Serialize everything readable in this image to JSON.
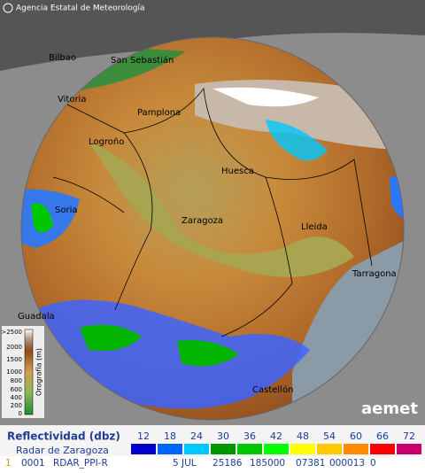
{
  "header": {
    "agency": "Agencia Estatal de Meteorología"
  },
  "map": {
    "cities": [
      {
        "label": "Bilbao"
      },
      {
        "label": "San Sebastián"
      },
      {
        "label": "Vitoria"
      },
      {
        "label": "Pamplona"
      },
      {
        "label": "Logroño"
      },
      {
        "label": "Huesca"
      },
      {
        "label": "Zaragoza"
      },
      {
        "label": "Lleida"
      },
      {
        "label": "Tarragona"
      },
      {
        "label": "Soria"
      },
      {
        "label": "Guadala"
      },
      {
        "label": "Castellón"
      }
    ]
  },
  "elevation_legend": {
    "title": "Orografía (m)",
    "ticks": [
      ">2500",
      "2000",
      "1500",
      "1000",
      "800",
      "600",
      "400",
      "200",
      "0"
    ]
  },
  "reflectivity_legend": {
    "title": "Reflectividad (dbz)",
    "radar": "Radar de Zaragoza",
    "levels": [
      {
        "label": "12",
        "color": "#0000c8"
      },
      {
        "label": "18",
        "color": "#0064ff"
      },
      {
        "label": "24",
        "color": "#00c8ff"
      },
      {
        "label": "30",
        "color": "#009600"
      },
      {
        "label": "36",
        "color": "#00c800"
      },
      {
        "label": "42",
        "color": "#00ff00"
      },
      {
        "label": "48",
        "color": "#ffff00"
      },
      {
        "label": "54",
        "color": "#ffc800"
      },
      {
        "label": "60",
        "color": "#ff8c00"
      },
      {
        "label": "66",
        "color": "#ff0000"
      },
      {
        "label": "72",
        "color": "#c8006e"
      }
    ]
  },
  "logo": "aemet",
  "status_bar": {
    "items": [
      "1",
      "0001",
      "RDAR_PPI-R",
      "5 JUL",
      "25186",
      "185000",
      "07381",
      "000013",
      "0"
    ]
  }
}
